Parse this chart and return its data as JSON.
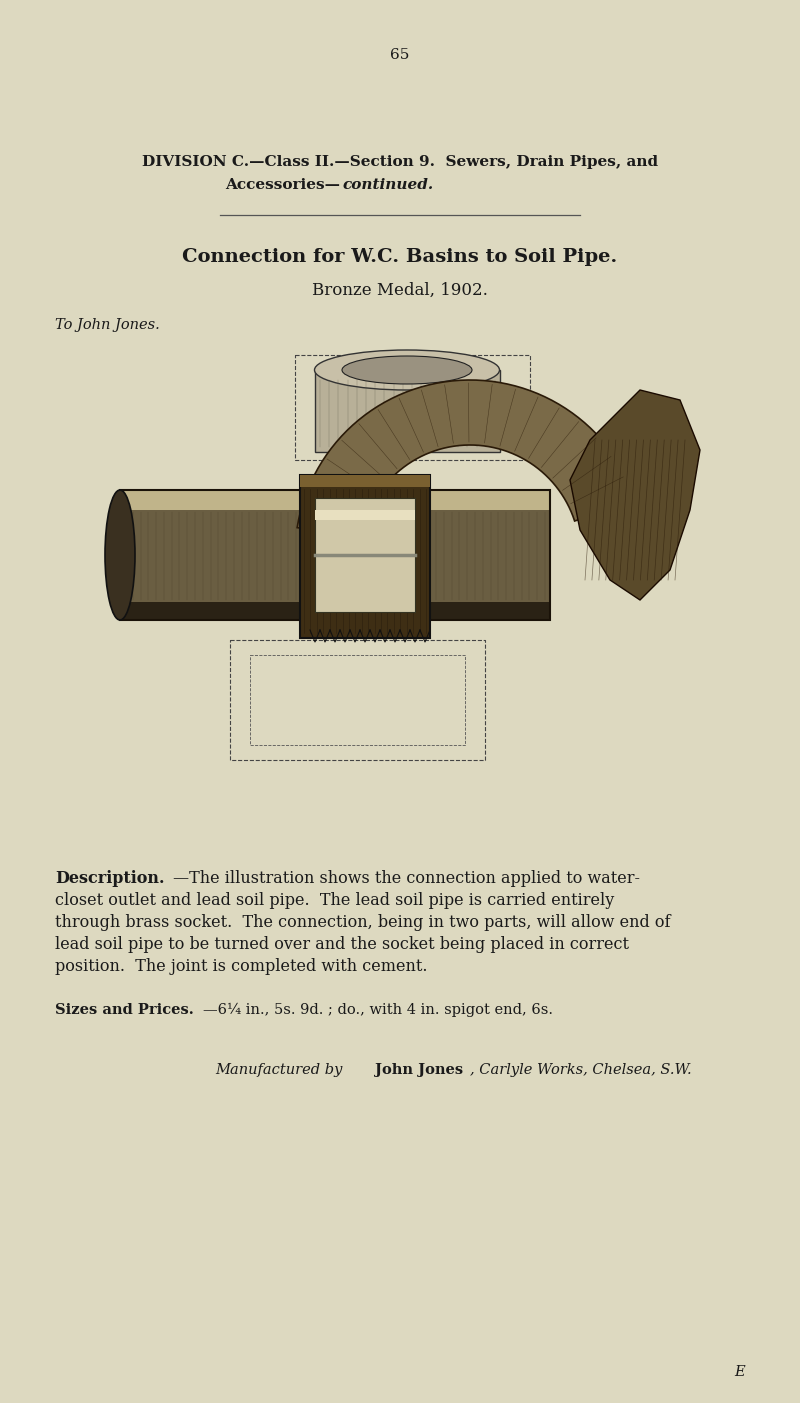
{
  "bg_color": "#ddd9c0",
  "text_color": "#1a1a1a",
  "page_number": "65",
  "division_line1": "DIVISION C.—Class II.—Section 9.  Sewers, Drain Pipes, and",
  "division_line2_normal": "Accessories—",
  "division_line2_italic": "continued.",
  "title": "Connection for W.C. Basins to Soil Pipe.",
  "subtitle": "Bronze Medal, 1902.",
  "award_to": "To John Jones.",
  "desc_label": "Description.",
  "desc_body": "—The illustration shows the connection applied to water-closet outlet and lead soil pipe.  The lead soil pipe is carried entirely through brass socket.  The connection, being in two parts, will allow end of lead soil pipe to be turned over and the socket being placed in correct position.  The joint is completed with cement.",
  "sizes_label": "Sizes and Prices.",
  "sizes_body": "—6¼ in., 5s. 9d. ; do., with 4 in. spigot end, 6s.",
  "manuf_italic": "Manufactured by ",
  "manuf_smallcaps": "John Jones",
  "manuf_end": ", Carlyle Works, Chelsea, S.W.",
  "footer": "E",
  "page_num_fontsize": 11,
  "heading_fontsize": 11,
  "title_fontsize": 14,
  "subtitle_fontsize": 12,
  "body_fontsize": 11.5,
  "small_fontsize": 10.5
}
